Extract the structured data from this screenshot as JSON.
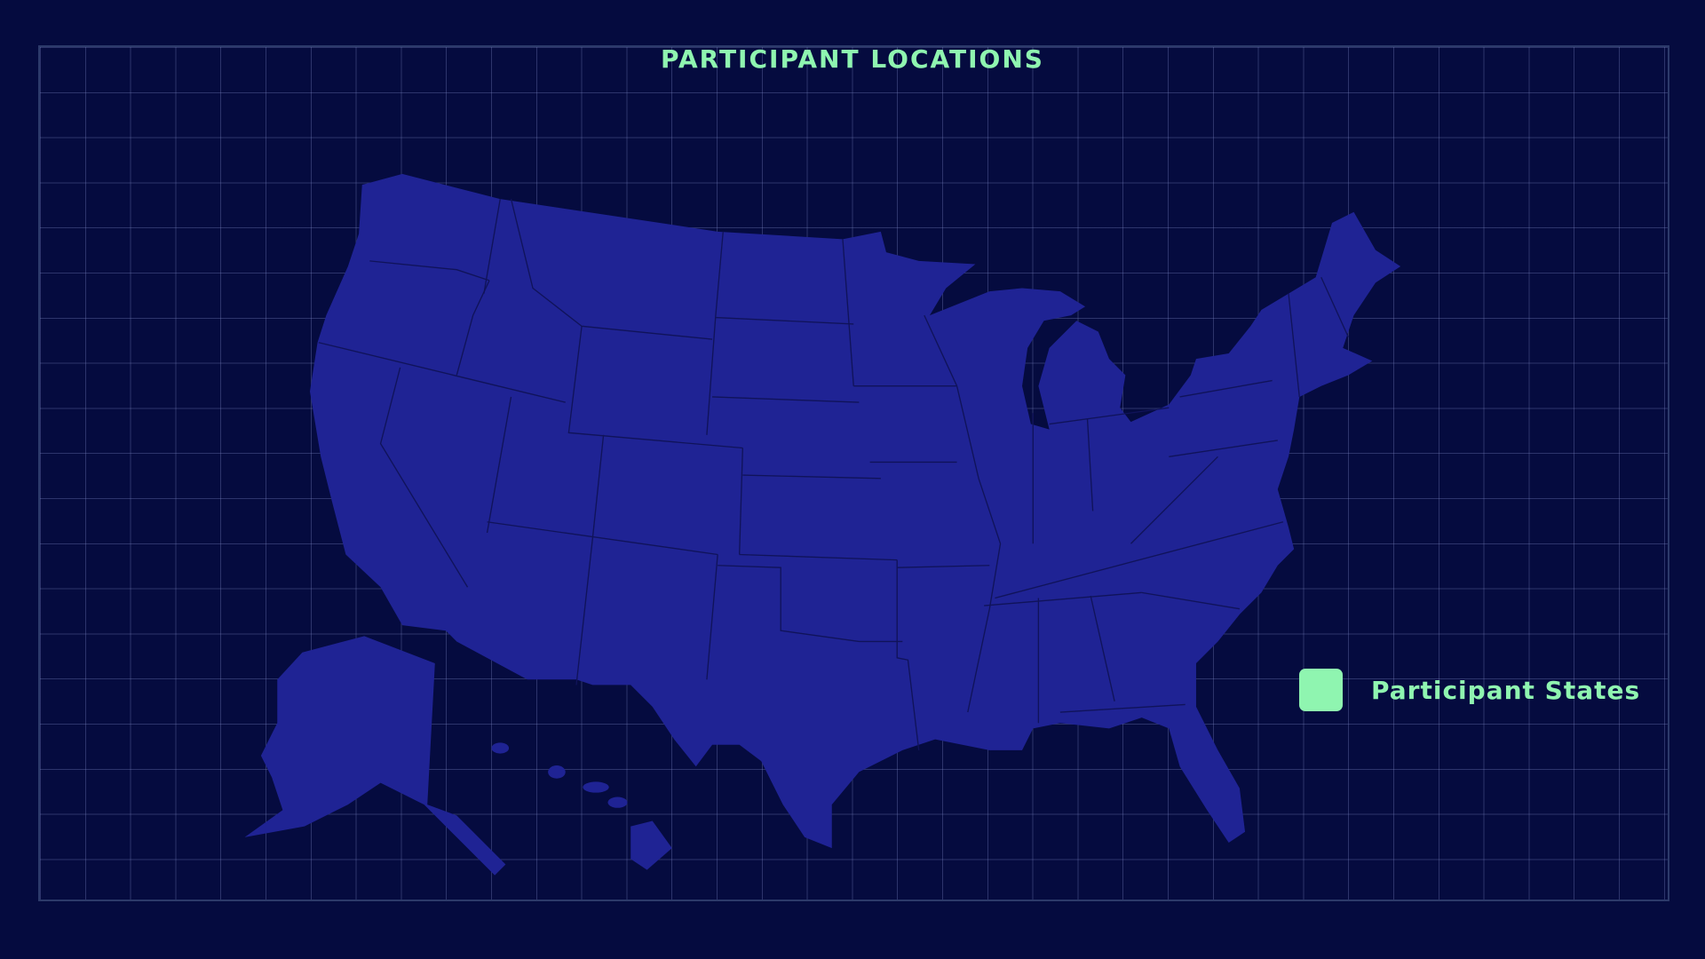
{
  "title": "PARTICIPANT LOCATIONS",
  "legend": {
    "label": "Participant States",
    "color": "#8ff5b0"
  },
  "map": {
    "region": "United States",
    "land_color": "#1f2394",
    "border_color": "#10135a",
    "background_color": "#050b3f",
    "highlighted_states": []
  }
}
